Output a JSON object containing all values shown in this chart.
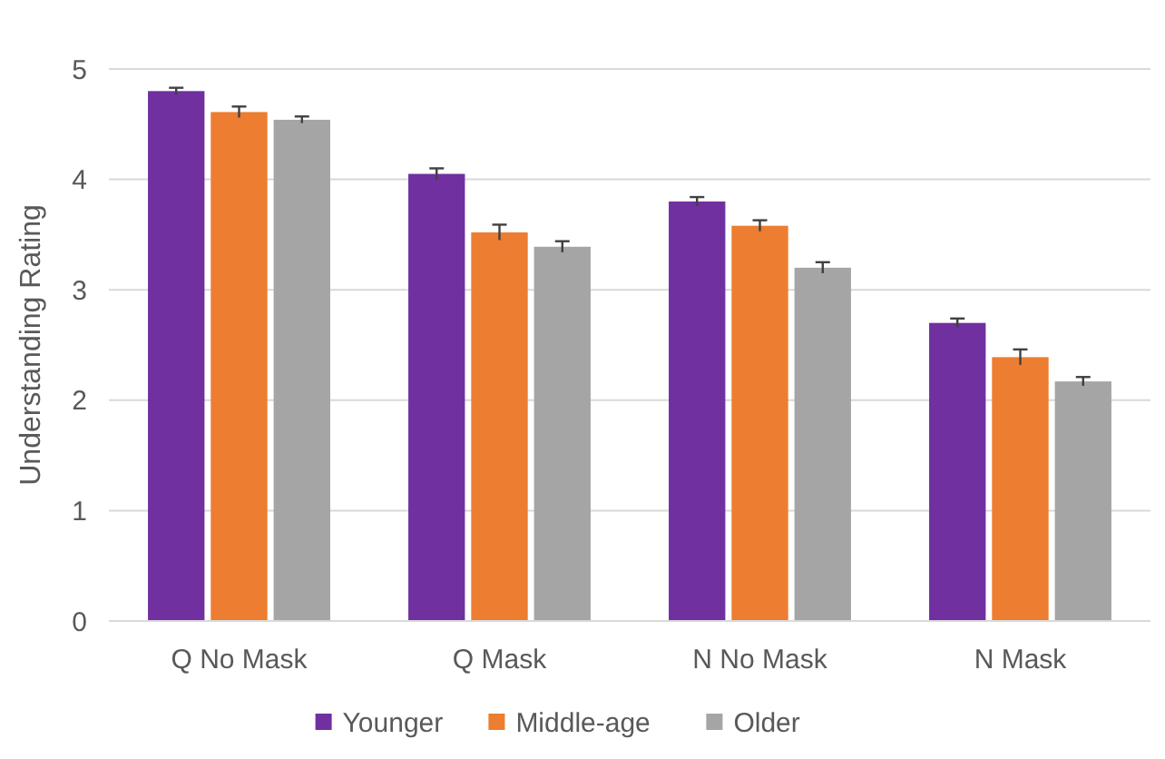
{
  "chart_data": {
    "type": "bar",
    "ylabel": "Understanding Rating",
    "categories": [
      "Q No Mask",
      "Q Mask",
      "N No Mask",
      "N Mask"
    ],
    "series": [
      {
        "name": "Younger",
        "color": "#7030a0",
        "values": [
          4.8,
          4.05,
          3.8,
          2.7
        ],
        "errors": [
          0.03,
          0.05,
          0.04,
          0.04
        ]
      },
      {
        "name": "Middle-age",
        "color": "#ed7d31",
        "values": [
          4.61,
          3.52,
          3.58,
          2.39
        ],
        "errors": [
          0.05,
          0.07,
          0.05,
          0.07
        ]
      },
      {
        "name": "Older",
        "color": "#a5a5a5",
        "values": [
          4.54,
          3.39,
          3.2,
          2.17
        ],
        "errors": [
          0.03,
          0.05,
          0.05,
          0.04
        ]
      }
    ],
    "ylim": [
      0,
      5
    ],
    "yticks": [
      0,
      1,
      2,
      3,
      4,
      5
    ],
    "grid": "y",
    "legend": "bottom"
  }
}
